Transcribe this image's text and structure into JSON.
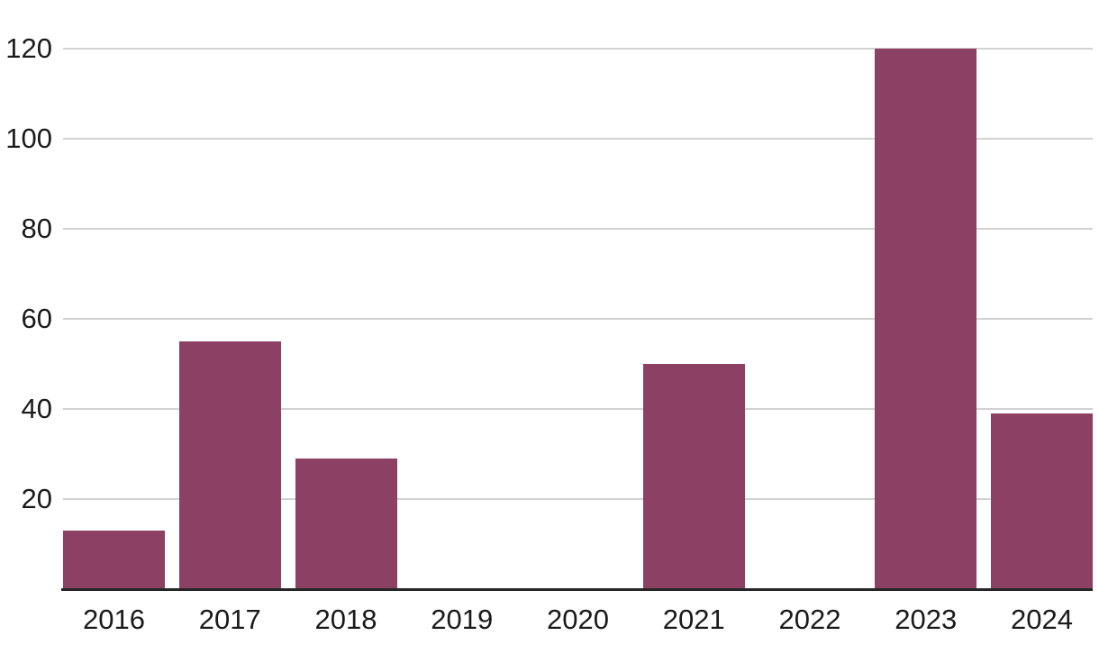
{
  "chart_data": {
    "type": "bar",
    "categories": [
      "2016",
      "2017",
      "2018",
      "2019",
      "2020",
      "2021",
      "2022",
      "2023",
      "2024"
    ],
    "values": [
      13,
      55,
      29,
      0,
      0,
      50,
      0,
      120,
      39
    ],
    "yticks": [
      20,
      40,
      60,
      80,
      100,
      120
    ],
    "ylim": [
      0,
      130
    ],
    "grid": "horizontal",
    "legend": "none",
    "colors": {
      "bar": "#8C4063",
      "gridline": "#d2d2d2",
      "axis": "#262626",
      "text": "#1a1a1a",
      "background": "#ffffff"
    }
  }
}
